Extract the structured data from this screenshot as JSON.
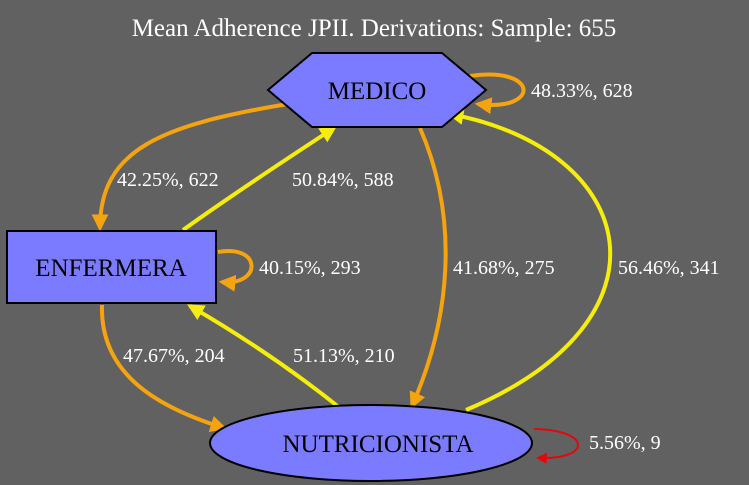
{
  "title": "Mean Adherence JPII. Derivations: Sample: 655",
  "colors": {
    "background": "#616161",
    "node_fill": "#7b7bff",
    "node_stroke": "#000000",
    "orange": "#f5a30f",
    "yellow": "#f5ee0a",
    "red": "#e3070b"
  },
  "nodes": {
    "medico": {
      "label": "MEDICO",
      "shape": "hexagon"
    },
    "enfermera": {
      "label": "ENFERMERA",
      "shape": "box"
    },
    "nutricionista": {
      "label": "NUTRICIONISTA",
      "shape": "ellipse"
    }
  },
  "edges": {
    "medico_self": {
      "from": "MEDICO",
      "to": "MEDICO",
      "label": "48.33%, 628",
      "color": "orange"
    },
    "medico_enfermera": {
      "from": "MEDICO",
      "to": "ENFERMERA",
      "label": "42.25%, 622",
      "color": "orange"
    },
    "enfermera_medico": {
      "from": "ENFERMERA",
      "to": "MEDICO",
      "label": "50.84%, 588",
      "color": "yellow"
    },
    "enfermera_self": {
      "from": "ENFERMERA",
      "to": "ENFERMERA",
      "label": "40.15%, 293",
      "color": "orange"
    },
    "medico_nutricionista": {
      "from": "MEDICO",
      "to": "NUTRICIONISTA",
      "label": "41.68%, 275",
      "color": "orange"
    },
    "nutricionista_medico": {
      "from": "NUTRICIONISTA",
      "to": "MEDICO",
      "label": "56.46%, 341",
      "color": "yellow"
    },
    "enfermera_nutricionista": {
      "from": "ENFERMERA",
      "to": "NUTRICIONISTA",
      "label": "47.67%, 204",
      "color": "orange"
    },
    "nutricionista_enfermera": {
      "from": "NUTRICIONISTA",
      "to": "ENFERMERA",
      "label": "51.13%, 210",
      "color": "yellow"
    },
    "nutricionista_self": {
      "from": "NUTRICIONISTA",
      "to": "NUTRICIONISTA",
      "label": "5.56%, 9",
      "color": "red"
    }
  }
}
